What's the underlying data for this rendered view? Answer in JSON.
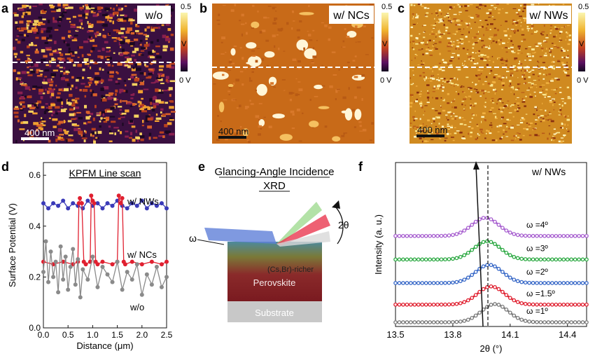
{
  "panels": {
    "a": {
      "letter": "a",
      "label": "w/o",
      "scale_bar": "400 nm"
    },
    "b": {
      "letter": "b",
      "label": "w/ NCs",
      "scale_bar": "400 nm"
    },
    "c": {
      "letter": "c",
      "label": "w/ NWs",
      "scale_bar": "400 nm"
    },
    "colorbar": {
      "top": "0.5",
      "mid": "V",
      "bottom": "0 V"
    },
    "e": {
      "letter": "e",
      "title_line1": "Glancing-Angle Incidence",
      "title_line2": "XRD",
      "omega": "ω",
      "two_theta": "2θ",
      "layer_top": "(Cs,Br)-richer",
      "layer_mid": "Perovskite",
      "layer_sub": "Substrate"
    }
  },
  "chart_data": [
    {
      "id": "d",
      "letter": "d",
      "type": "line",
      "title": "KPFM Line scan",
      "xlabel": "Distance (μm)",
      "ylabel": "Surface Potential (V)",
      "xlim": [
        0.0,
        2.5
      ],
      "ylim": [
        0.0,
        0.65
      ],
      "xticks": [
        "0.0",
        "0.5",
        "1.0",
        "1.5",
        "2.0",
        "2.5"
      ],
      "yticks": [
        "0.0",
        "0.2",
        "0.4",
        "0.6"
      ],
      "series": [
        {
          "name": "w/ NWs",
          "color": "#3a3ab8",
          "x": [
            0.0,
            0.1,
            0.2,
            0.3,
            0.4,
            0.5,
            0.6,
            0.7,
            0.8,
            0.9,
            1.0,
            1.1,
            1.2,
            1.3,
            1.4,
            1.5,
            1.6,
            1.7,
            1.8,
            1.9,
            2.0,
            2.1,
            2.2,
            2.3,
            2.4,
            2.5
          ],
          "y": [
            0.49,
            0.47,
            0.49,
            0.48,
            0.5,
            0.47,
            0.49,
            0.48,
            0.47,
            0.5,
            0.48,
            0.49,
            0.47,
            0.49,
            0.48,
            0.5,
            0.48,
            0.47,
            0.49,
            0.48,
            0.5,
            0.47,
            0.49,
            0.48,
            0.49,
            0.47
          ]
        },
        {
          "name": "w/ NCs",
          "color": "#e02030",
          "x": [
            0.0,
            0.2,
            0.4,
            0.6,
            0.7,
            0.72,
            0.74,
            0.78,
            0.82,
            0.86,
            0.95,
            0.97,
            1.0,
            1.03,
            1.06,
            1.1,
            1.2,
            1.4,
            1.5,
            1.53,
            1.57,
            1.6,
            1.63,
            1.66,
            1.8,
            2.0,
            2.2,
            2.4,
            2.5
          ],
          "y": [
            0.26,
            0.25,
            0.26,
            0.25,
            0.26,
            0.49,
            0.51,
            0.49,
            0.26,
            0.25,
            0.26,
            0.52,
            0.5,
            0.49,
            0.26,
            0.25,
            0.26,
            0.25,
            0.26,
            0.52,
            0.49,
            0.51,
            0.26,
            0.25,
            0.26,
            0.25,
            0.26,
            0.25,
            0.26
          ]
        },
        {
          "name": "w/o",
          "color": "#8a8a8a",
          "x": [
            0.0,
            0.05,
            0.1,
            0.15,
            0.2,
            0.25,
            0.3,
            0.35,
            0.4,
            0.45,
            0.5,
            0.55,
            0.6,
            0.65,
            0.7,
            0.75,
            0.8,
            0.9,
            1.0,
            1.1,
            1.2,
            1.3,
            1.4,
            1.5,
            1.6,
            1.7,
            1.8,
            1.9,
            2.0,
            2.1,
            2.2,
            2.3,
            2.4,
            2.5
          ],
          "y": [
            0.22,
            0.34,
            0.18,
            0.3,
            0.2,
            0.26,
            0.14,
            0.32,
            0.19,
            0.28,
            0.15,
            0.24,
            0.31,
            0.17,
            0.27,
            0.12,
            0.23,
            0.19,
            0.28,
            0.16,
            0.24,
            0.21,
            0.18,
            0.26,
            0.15,
            0.22,
            0.19,
            0.25,
            0.13,
            0.21,
            0.17,
            0.24,
            0.16,
            0.2
          ]
        }
      ]
    },
    {
      "id": "f",
      "letter": "f",
      "type": "line",
      "title": "w/ NWs",
      "xlabel": "2θ (°)",
      "ylabel": "Intensity (a. u.)",
      "xlim": [
        13.5,
        14.5
      ],
      "xticks": [
        "13.5",
        "13.8",
        "14.1",
        "14.4"
      ],
      "series": [
        {
          "name": "ω =1º",
          "color": "#7a7a7a",
          "offset": 0.0,
          "center": 14.02
        },
        {
          "name": "ω =1.5º",
          "color": "#e02030",
          "offset": 0.9,
          "center": 14.0
        },
        {
          "name": "ω =2º",
          "color": "#3a6ac8",
          "offset": 2.0,
          "center": 13.99
        },
        {
          "name": "ω =3º",
          "color": "#2eaa44",
          "offset": 3.2,
          "center": 13.98
        },
        {
          "name": "ω =4º",
          "color": "#a860d0",
          "offset": 4.4,
          "center": 13.97
        }
      ]
    }
  ]
}
